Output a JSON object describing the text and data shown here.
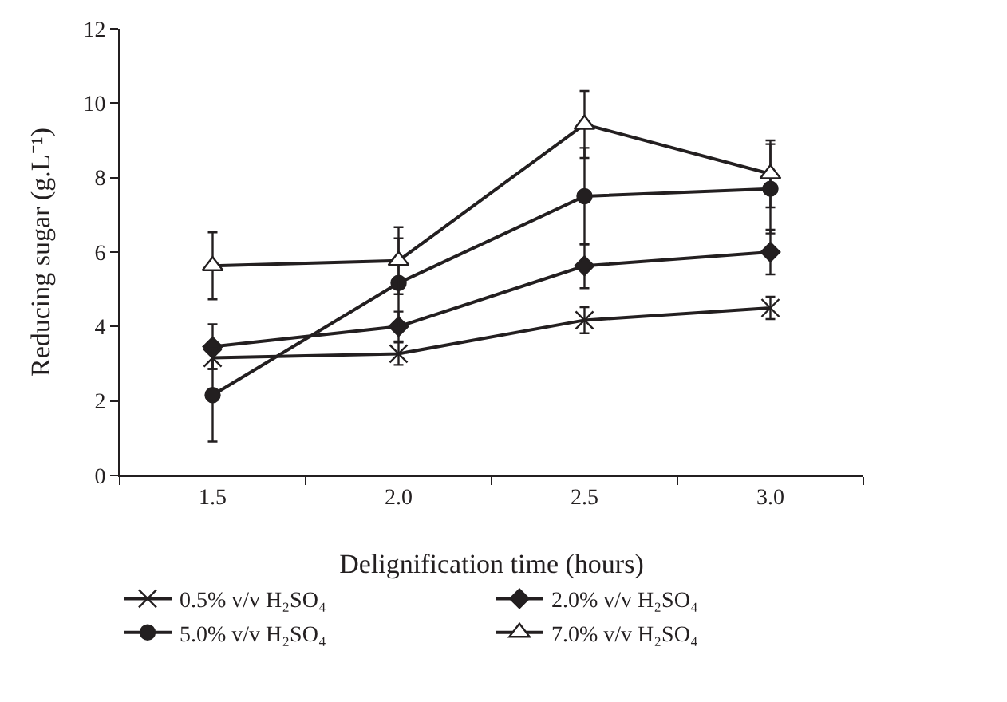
{
  "chart_data": {
    "type": "line",
    "xlabel": "Delignification time (hours)",
    "ylabel": "Reducing sugar (g.L⁻¹)",
    "categories": [
      "1.5",
      "2.0",
      "2.5",
      "3.0"
    ],
    "ylim": [
      0,
      12
    ],
    "yticks": [
      0,
      2,
      4,
      6,
      8,
      10,
      12
    ],
    "grid": false,
    "legend": "bottom",
    "line_style": "solid",
    "series": [
      {
        "name": "0.5% v/v H₂SO₄",
        "color": "#231f20",
        "marker": "cross",
        "values": [
          3.16,
          3.27,
          4.17,
          4.5
        ],
        "errors": [
          0.3,
          0.3,
          0.35,
          0.3
        ]
      },
      {
        "name": "2.0% v/v H₂SO₄",
        "color": "#231f20",
        "marker": "diamond",
        "values": [
          3.46,
          4.0,
          5.63,
          6.0
        ],
        "errors": [
          0.6,
          0.4,
          0.6,
          0.6
        ]
      },
      {
        "name": "5.0% v/v H₂SO₄",
        "color": "#231f20",
        "marker": "circle",
        "values": [
          2.16,
          5.17,
          7.5,
          7.7
        ],
        "errors": [
          1.25,
          1.2,
          1.3,
          1.2
        ]
      },
      {
        "name": "7.0% v/v H₂SO₄",
        "color": "#231f20",
        "marker": "triangle",
        "values": [
          5.63,
          5.77,
          9.43,
          8.1
        ],
        "errors": [
          0.9,
          0.9,
          0.9,
          0.9
        ]
      }
    ]
  }
}
